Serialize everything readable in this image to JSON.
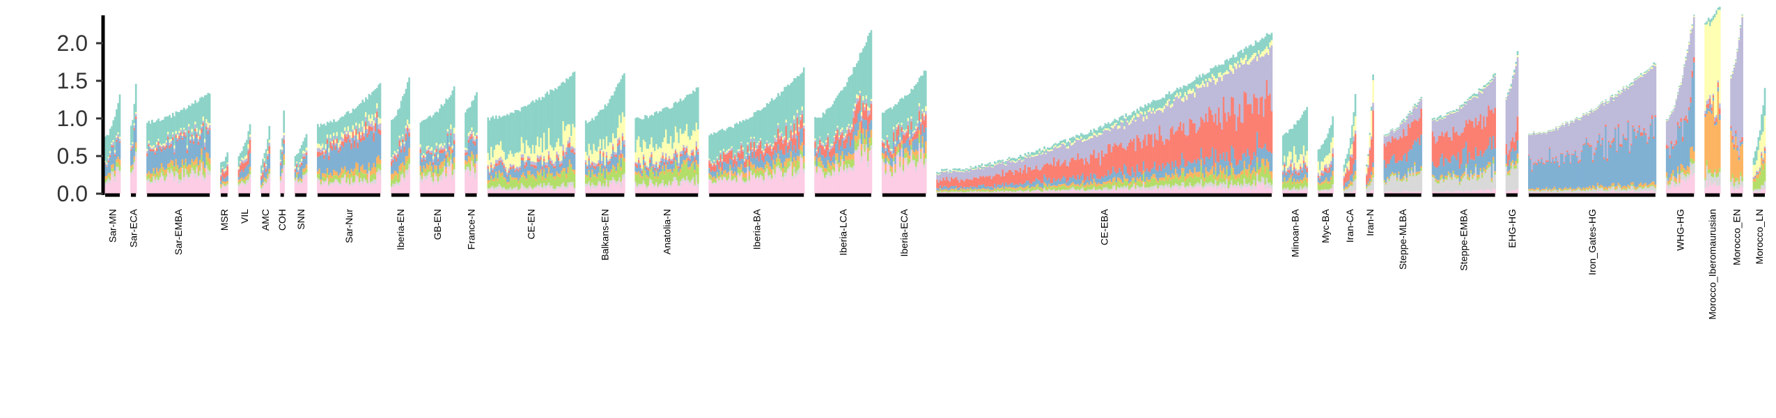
{
  "chart_data": {
    "type": "bar",
    "stacked": true,
    "title": "",
    "xlabel": "",
    "ylabel": "",
    "ylim": [
      0,
      2.5
    ],
    "yticks": [
      0.0,
      0.5,
      1.0,
      1.5,
      2.0
    ],
    "ytick_labels": [
      "0.0",
      "0.5",
      "1.0",
      "1.5",
      "2.0"
    ],
    "legend": "none",
    "grid": false,
    "component_colors": [
      "#fccde5",
      "#d9d9d9",
      "#b3de69",
      "#fdb462",
      "#80b1d3",
      "#fb8072",
      "#bebada",
      "#ffffb3",
      "#8dd3c7"
    ],
    "groups": [
      {
        "label": "Sar-MN",
        "n": 10,
        "min": 0.75,
        "max": 1.3,
        "mix": [
          0.2,
          0.05,
          0.05,
          0.05,
          0.2,
          0.02,
          0.03,
          0.02,
          0.38
        ]
      },
      {
        "label": "Sar-ECA",
        "n": 4,
        "min": 0.9,
        "max": 1.45,
        "mix": [
          0.25,
          0.05,
          0.05,
          0.05,
          0.3,
          0.02,
          0.03,
          0.02,
          0.23
        ]
      },
      {
        "label": "Sar-EMBA",
        "n": 40,
        "min": 0.95,
        "max": 1.35,
        "mix": [
          0.2,
          0.04,
          0.06,
          0.06,
          0.25,
          0.03,
          0.03,
          0.03,
          0.3
        ]
      },
      {
        "label": "MSR",
        "n": 5,
        "min": 0.4,
        "max": 0.55,
        "mix": [
          0.2,
          0.05,
          0.05,
          0.05,
          0.1,
          0.2,
          0.05,
          0.05,
          0.25
        ]
      },
      {
        "label": "VIL",
        "n": 8,
        "min": 0.5,
        "max": 0.9,
        "mix": [
          0.2,
          0.05,
          0.05,
          0.05,
          0.15,
          0.15,
          0.05,
          0.05,
          0.25
        ]
      },
      {
        "label": "AMC",
        "n": 6,
        "min": 0.4,
        "max": 0.9,
        "mix": [
          0.2,
          0.05,
          0.05,
          0.05,
          0.2,
          0.1,
          0.05,
          0.05,
          0.25
        ]
      },
      {
        "label": "COH",
        "n": 3,
        "min": 0.6,
        "max": 1.1,
        "mix": [
          0.25,
          0.05,
          0.05,
          0.05,
          0.2,
          0.05,
          0.05,
          0.05,
          0.25
        ]
      },
      {
        "label": "SNN",
        "n": 8,
        "min": 0.5,
        "max": 0.8,
        "mix": [
          0.25,
          0.05,
          0.05,
          0.05,
          0.2,
          0.05,
          0.05,
          0.05,
          0.25
        ]
      },
      {
        "label": "Sar-Nur",
        "n": 40,
        "min": 0.9,
        "max": 1.45,
        "mix": [
          0.15,
          0.03,
          0.06,
          0.06,
          0.3,
          0.06,
          0.04,
          0.05,
          0.25
        ]
      },
      {
        "label": "Iberia-EN",
        "n": 12,
        "min": 1.0,
        "max": 1.55,
        "mix": [
          0.15,
          0.03,
          0.08,
          0.06,
          0.15,
          0.05,
          0.03,
          0.03,
          0.42
        ]
      },
      {
        "label": "GB-EN",
        "n": 22,
        "min": 0.95,
        "max": 1.4,
        "mix": [
          0.2,
          0.04,
          0.06,
          0.05,
          0.12,
          0.03,
          0.03,
          0.03,
          0.44
        ]
      },
      {
        "label": "France-N",
        "n": 8,
        "min": 1.1,
        "max": 1.35,
        "mix": [
          0.25,
          0.04,
          0.05,
          0.05,
          0.12,
          0.03,
          0.03,
          0.03,
          0.4
        ]
      },
      {
        "label": "CE-EN",
        "n": 55,
        "min": 1.0,
        "max": 1.6,
        "mix": [
          0.05,
          0.03,
          0.1,
          0.03,
          0.1,
          0.03,
          0.03,
          0.15,
          0.48
        ]
      },
      {
        "label": "Balkans-EN",
        "n": 25,
        "min": 0.95,
        "max": 1.6,
        "mix": [
          0.1,
          0.03,
          0.12,
          0.03,
          0.1,
          0.03,
          0.03,
          0.15,
          0.41
        ]
      },
      {
        "label": "Anatolia-N",
        "n": 40,
        "min": 1.0,
        "max": 1.4,
        "mix": [
          0.1,
          0.03,
          0.12,
          0.03,
          0.08,
          0.03,
          0.03,
          0.2,
          0.38
        ]
      },
      {
        "label": "Iberia-BA",
        "n": 60,
        "min": 0.8,
        "max": 1.65,
        "mix": [
          0.2,
          0.03,
          0.05,
          0.05,
          0.1,
          0.12,
          0.03,
          0.02,
          0.4
        ]
      },
      {
        "label": "Iberia-LCA",
        "n": 36,
        "min": 1.0,
        "max": 2.2,
        "mix": [
          0.25,
          0.03,
          0.05,
          0.05,
          0.1,
          0.1,
          0.03,
          0.02,
          0.37
        ]
      },
      {
        "label": "Iberia-ECA",
        "n": 28,
        "min": 1.1,
        "max": 1.65,
        "mix": [
          0.3,
          0.03,
          0.05,
          0.05,
          0.1,
          0.08,
          0.03,
          0.02,
          0.34
        ]
      },
      {
        "label": "CE-EBA",
        "n": 210,
        "min": 0.3,
        "max": 2.15,
        "mix": [
          0.05,
          0.03,
          0.06,
          0.04,
          0.1,
          0.32,
          0.3,
          0.03,
          0.07
        ]
      },
      {
        "label": "Minoan-BA",
        "n": 16,
        "min": 0.8,
        "max": 1.15,
        "mix": [
          0.05,
          0.03,
          0.1,
          0.04,
          0.12,
          0.04,
          0.04,
          0.15,
          0.43
        ]
      },
      {
        "label": "Myc-BA",
        "n": 10,
        "min": 0.6,
        "max": 1.0,
        "mix": [
          0.05,
          0.03,
          0.1,
          0.04,
          0.12,
          0.06,
          0.05,
          0.2,
          0.35
        ]
      },
      {
        "label": "Iran-CA",
        "n": 8,
        "min": 0.4,
        "max": 1.3,
        "mix": [
          0.03,
          0.1,
          0.03,
          0.05,
          0.1,
          0.25,
          0.05,
          0.15,
          0.24
        ]
      },
      {
        "label": "Iran-N",
        "n": 5,
        "min": 0.4,
        "max": 1.6,
        "mix": [
          0.03,
          0.1,
          0.03,
          0.05,
          0.05,
          0.4,
          0.05,
          0.25,
          0.04
        ]
      },
      {
        "label": "Steppe-MLBA",
        "n": 24,
        "min": 0.8,
        "max": 1.3,
        "mix": [
          0.03,
          0.2,
          0.02,
          0.02,
          0.25,
          0.3,
          0.15,
          0.01,
          0.02
        ]
      },
      {
        "label": "Steppe-EMBA",
        "n": 40,
        "min": 1.0,
        "max": 1.6,
        "mix": [
          0.03,
          0.15,
          0.02,
          0.02,
          0.2,
          0.3,
          0.25,
          0.01,
          0.02
        ]
      },
      {
        "label": "EHG-HG",
        "n": 8,
        "min": 1.3,
        "max": 1.9,
        "mix": [
          0.03,
          0.2,
          0.02,
          0.02,
          0.1,
          0.1,
          0.5,
          0.01,
          0.02
        ]
      },
      {
        "label": "Iron_Gates-HG",
        "n": 80,
        "min": 0.8,
        "max": 1.75,
        "mix": [
          0.02,
          0.03,
          0.01,
          0.02,
          0.45,
          0.02,
          0.43,
          0.01,
          0.01
        ]
      },
      {
        "label": "WHG-HG",
        "n": 18,
        "min": 1.0,
        "max": 2.4,
        "mix": [
          0.1,
          0.05,
          0.02,
          0.05,
          0.35,
          0.03,
          0.38,
          0.01,
          0.01
        ]
      },
      {
        "label": "Morocco_Iberomaurusian",
        "n": 10,
        "min": 2.3,
        "max": 2.5,
        "mix": [
          0.05,
          0.05,
          0.02,
          0.35,
          0.02,
          0.02,
          0.02,
          0.45,
          0.02
        ]
      },
      {
        "label": "Morocco_EN",
        "n": 8,
        "min": 1.6,
        "max": 2.4,
        "mix": [
          0.05,
          0.05,
          0.02,
          0.25,
          0.02,
          0.02,
          0.57,
          0.01,
          0.01
        ]
      },
      {
        "label": "Morocco_LN",
        "n": 8,
        "min": 0.5,
        "max": 1.4,
        "mix": [
          0.05,
          0.05,
          0.2,
          0.1,
          0.02,
          0.02,
          0.02,
          0.3,
          0.24
        ]
      }
    ]
  }
}
